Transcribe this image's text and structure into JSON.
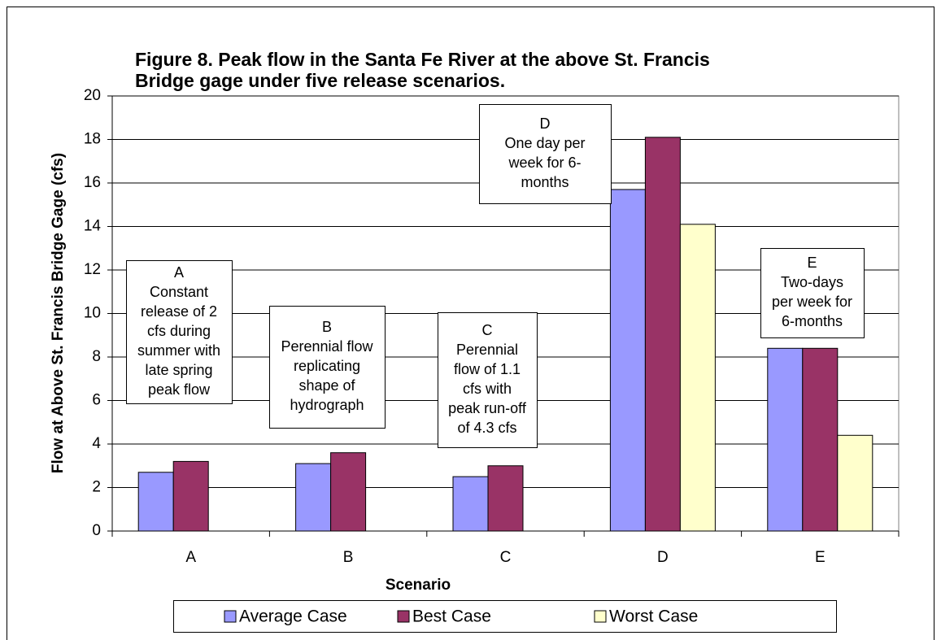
{
  "chart_data": {
    "type": "bar",
    "title": [
      "Figure 8.  Peak flow in the Santa Fe River at the above St. Francis",
      "Bridge gage under five release scenarios."
    ],
    "x_label": "Scenario",
    "y_label": "Flow at Above St. Francis Bridge Gage (cfs)",
    "categories": [
      "A",
      "B",
      "C",
      "D",
      "E"
    ],
    "series": [
      {
        "name": "Average Case",
        "color": "#9999ff",
        "values": [
          2.7,
          3.1,
          2.5,
          15.7,
          8.4
        ]
      },
      {
        "name": "Best Case",
        "color": "#993366",
        "values": [
          3.2,
          3.6,
          3.0,
          18.1,
          8.4
        ]
      },
      {
        "name": "Worst Case",
        "color": "#ffffcc",
        "values": [
          null,
          null,
          null,
          14.1,
          4.4
        ]
      }
    ],
    "ylim": [
      0,
      20
    ],
    "yticks": [
      0,
      2,
      4,
      6,
      8,
      10,
      12,
      14,
      16,
      18,
      20
    ],
    "grid": true,
    "legend": "bottom",
    "annotations": [
      {
        "lines": [
          "A",
          "Constant",
          "release of 2",
          "cfs during",
          "summer with",
          "late spring",
          "peak flow"
        ]
      },
      {
        "lines": [
          "B",
          "Perennial flow",
          "replicating",
          "shape of",
          "hydrograph"
        ]
      },
      {
        "lines": [
          "C",
          "Perennial",
          "flow of 1.1",
          "cfs with",
          "peak run-off",
          "of 4.3 cfs"
        ]
      },
      {
        "lines": [
          "D",
          "One day per",
          "week for 6-",
          "months"
        ]
      },
      {
        "lines": [
          "E",
          "Two-days",
          "per week for",
          "6-months"
        ]
      }
    ]
  }
}
